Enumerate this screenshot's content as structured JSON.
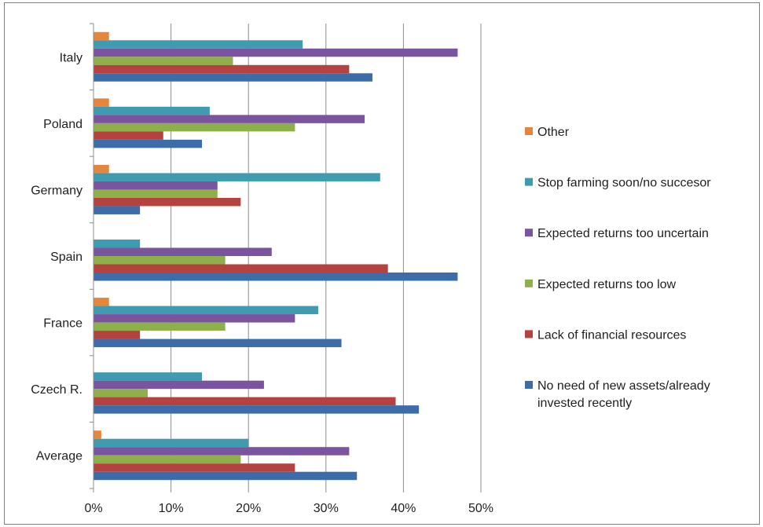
{
  "chart_data": {
    "type": "bar",
    "orientation": "horizontal",
    "title": "",
    "xlabel": "",
    "ylabel": "",
    "xlim": [
      0,
      50
    ],
    "x_ticks": [
      "0%",
      "10%",
      "20%",
      "30%",
      "40%",
      "50%"
    ],
    "grid": "vertical",
    "legend_position": "right",
    "categories": [
      "Italy",
      "Poland",
      "Germany",
      "Spain",
      "France",
      "Czech R.",
      "Average"
    ],
    "series": [
      {
        "name": "Other",
        "color": "#E6863C",
        "values": [
          2,
          2,
          2,
          0,
          2,
          0,
          1
        ]
      },
      {
        "name": "Stop farming soon/no succesor",
        "color": "#3E9BB0",
        "values": [
          27,
          15,
          37,
          6,
          29,
          14,
          20
        ]
      },
      {
        "name": "Expected returns too uncertain",
        "color": "#7A549E",
        "values": [
          47,
          35,
          16,
          23,
          26,
          22,
          33
        ]
      },
      {
        "name": "Expected returns too low",
        "color": "#8DB04A",
        "values": [
          18,
          26,
          16,
          17,
          17,
          7,
          19
        ]
      },
      {
        "name": "Lack of financial resources",
        "color": "#B6423F",
        "values": [
          33,
          9,
          19,
          38,
          6,
          39,
          26
        ]
      },
      {
        "name": "No need of new assets/already invested recently",
        "name_lines": [
          "No need of new assets/already",
          "invested recently"
        ],
        "color": "#3C6DA8",
        "values": [
          36,
          14,
          6,
          47,
          32,
          42,
          34
        ]
      }
    ]
  }
}
